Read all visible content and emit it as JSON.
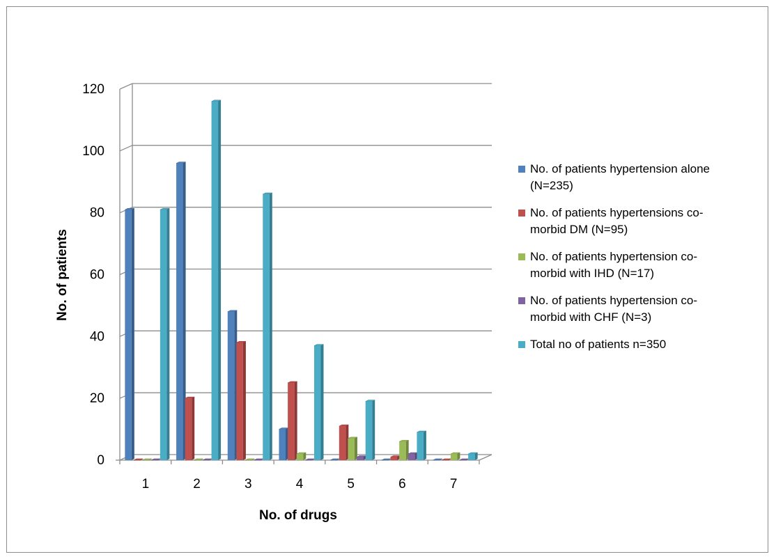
{
  "chart_data": {
    "type": "bar",
    "title": "",
    "xlabel": "No. of drugs",
    "ylabel": "No. of patients",
    "categories": [
      "1",
      "2",
      "3",
      "4",
      "5",
      "6",
      "7"
    ],
    "ylim": [
      0,
      120
    ],
    "yticks": [
      "0",
      "20",
      "40",
      "60",
      "80",
      "100",
      "120"
    ],
    "grid": true,
    "legend_position": "right",
    "series": [
      {
        "name": "No. of patients hypertension alone (N=235)",
        "legend_lines": [
          "No. of patients hypertension alone",
          "(N=235)"
        ],
        "color": "#4F81BD",
        "side": "#385D8A",
        "values": [
          81,
          96,
          48,
          10,
          0,
          0,
          0
        ]
      },
      {
        "name": "No. of patients hypertensions co-morbid DM (N=95)",
        "legend_lines": [
          "No. of patients hypertensions co-",
          "morbid DM (N=95)"
        ],
        "color": "#C0504D",
        "side": "#8C3836",
        "values": [
          0,
          20,
          38,
          25,
          11,
          1,
          0
        ]
      },
      {
        "name": "No. of patients hypertension co-morbid with IHD (N=17)",
        "legend_lines": [
          "No. of patients hypertension co-",
          "morbid with IHD (N=17)"
        ],
        "color": "#9BBB59",
        "side": "#71893F",
        "values": [
          0,
          0,
          0,
          2,
          7,
          6,
          2
        ]
      },
      {
        "name": "No. of patients hypertension co-morbid with CHF (N=3)",
        "legend_lines": [
          "No. of patients hypertension co-",
          "morbid with CHF (N=3)"
        ],
        "color": "#8064A2",
        "side": "#5C4776",
        "values": [
          0,
          0,
          0,
          0,
          1,
          2,
          0
        ]
      },
      {
        "name": "Total no of patients n=350",
        "legend_lines": [
          "Total no of patients n=350"
        ],
        "color": "#4BACC6",
        "side": "#357D91",
        "values": [
          81,
          116,
          86,
          37,
          19,
          9,
          2
        ]
      }
    ]
  }
}
